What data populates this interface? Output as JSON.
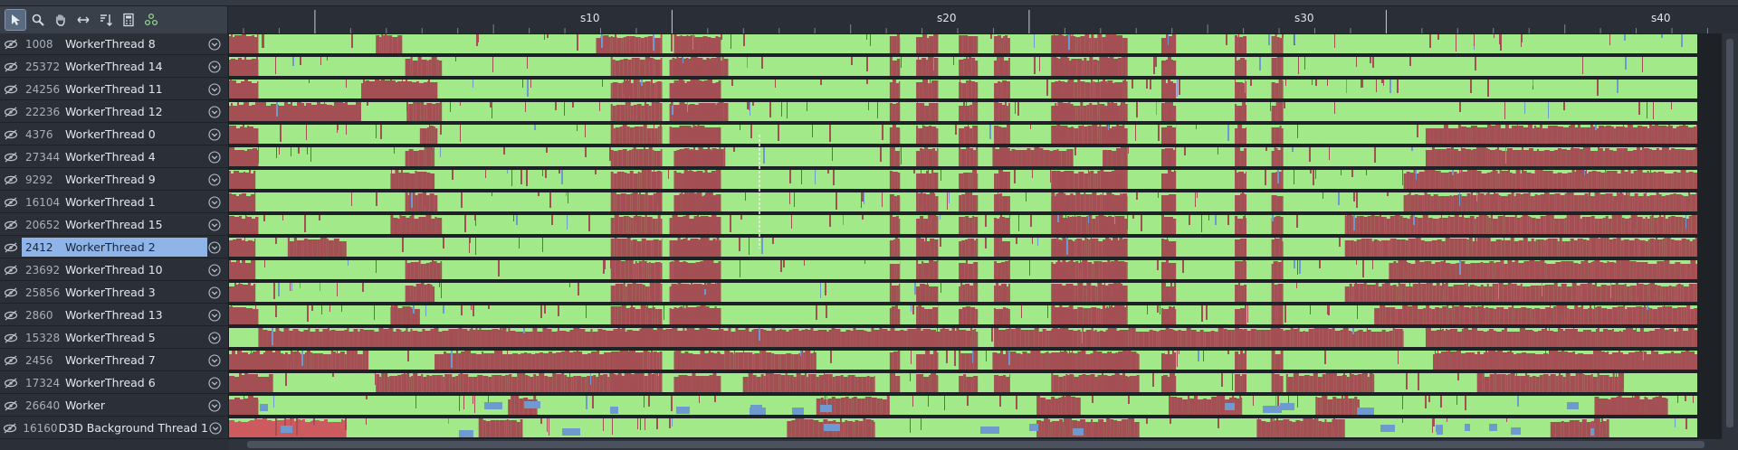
{
  "ruler": {
    "labels": [
      "s10",
      "s20",
      "s30",
      "s40"
    ]
  },
  "colors": {
    "running": "#a2e98a",
    "waiting": "#a34f54",
    "other": "#6f9ad0",
    "bright_wait": "#cc5a5e",
    "background": "#1e2227",
    "selection": "#8fb4e8"
  },
  "icons": {
    "row_visibility": "eye-icon",
    "row_expand": "chevron-down-icon"
  },
  "threads": [
    {
      "id": "1008",
      "name": "WorkerThread 8"
    },
    {
      "id": "25372",
      "name": "WorkerThread 14"
    },
    {
      "id": "24256",
      "name": "WorkerThread 11"
    },
    {
      "id": "22236",
      "name": "WorkerThread 12"
    },
    {
      "id": "4376",
      "name": "WorkerThread 0"
    },
    {
      "id": "27344",
      "name": "WorkerThread 4"
    },
    {
      "id": "9292",
      "name": "WorkerThread 9"
    },
    {
      "id": "16104",
      "name": "WorkerThread 1"
    },
    {
      "id": "20652",
      "name": "WorkerThread 15"
    },
    {
      "id": "2412",
      "name": "WorkerThread 2",
      "selected": true
    },
    {
      "id": "23692",
      "name": "WorkerThread 10"
    },
    {
      "id": "25856",
      "name": "WorkerThread 3"
    },
    {
      "id": "2860",
      "name": "WorkerThread 13"
    },
    {
      "id": "15328",
      "name": "WorkerThread 5"
    },
    {
      "id": "2456",
      "name": "WorkerThread 7"
    },
    {
      "id": "17324",
      "name": "WorkerThread 6"
    },
    {
      "id": "26640",
      "name": "Worker"
    },
    {
      "id": "16160",
      "name": "D3D Background Thread 1"
    }
  ]
}
